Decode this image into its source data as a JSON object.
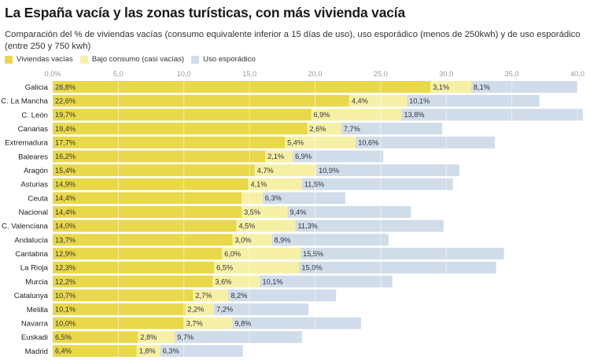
{
  "chart_data": {
    "type": "bar",
    "orientation": "horizontal",
    "stacked": true,
    "title": "La España vacía y las zonas turísticas, con más vivienda vacía",
    "subtitle": "Comparación del % de viviendas vacías (consumo equivalente inferior a 15 días de uso), uso esporádico (menos de 250kwh) y de uso esporádico (entre 250 y 750 kwh)",
    "xlabel": "",
    "ylabel": "",
    "xlim": [
      0,
      40
    ],
    "x_ticks": [
      0,
      5,
      10,
      15,
      20,
      25,
      30,
      35,
      40
    ],
    "x_tick_labels": [
      "0,0%",
      "5,0",
      "10,0",
      "15,0",
      "20,0",
      "25,0",
      "30,0",
      "35,0",
      "40,0"
    ],
    "grid": true,
    "legend_position": "top-left",
    "categories": [
      "Galicia",
      "C. La Mancha",
      "C. León",
      "Canarias",
      "Extremadura",
      "Baleares",
      "Aragón",
      "Asturias",
      "Ceuta",
      "Nacional",
      "C. Valenciana",
      "Andalucía",
      "Cantabria",
      "La Rioja",
      "Murcia",
      "Catalunya",
      "Melilla",
      "Navarra",
      "Euskadi",
      "Madrid"
    ],
    "series": [
      {
        "name": "Viviendas vacías",
        "color": "#e8d84a",
        "values": [
          28.8,
          22.6,
          19.7,
          19.4,
          17.7,
          16.2,
          15.4,
          14.9,
          14.4,
          14.4,
          14.0,
          13.7,
          12.9,
          12.3,
          12.2,
          10.7,
          10.1,
          10.0,
          6.5,
          6.4
        ],
        "labels": [
          "28,8%",
          "22,6%",
          "19,7%",
          "19,4%",
          "17,7%",
          "16,2%",
          "15,4%",
          "14,9%",
          "14,4%",
          "14,4%",
          "14,0%",
          "13,7%",
          "12,9%",
          "12,3%",
          "12,2%",
          "10,7%",
          "10,1%",
          "10,0%",
          "6,5%",
          "6,4%"
        ]
      },
      {
        "name": "Bajo consumo (casi vacías)",
        "color": "#f6f0a6",
        "values": [
          3.1,
          4.4,
          6.9,
          2.6,
          5.4,
          2.1,
          4.7,
          4.1,
          1.6,
          3.5,
          4.5,
          3.0,
          6.0,
          6.5,
          3.6,
          2.7,
          2.2,
          3.7,
          2.8,
          1.8
        ],
        "labels": [
          "3,1%",
          "4,4%",
          "6,9%",
          "2,6%",
          "5,4%",
          "2,1%",
          "4,7%",
          "4,1%",
          "",
          "3,5%",
          "4,5%",
          "3,0%",
          "6,0%",
          "6,5%",
          "3,6%",
          "2,7%",
          "2,2%",
          "3,7%",
          "2,8%",
          "1,8%"
        ]
      },
      {
        "name": "Uso esporádico",
        "color": "#d0dce9",
        "values": [
          8.1,
          10.1,
          13.8,
          7.7,
          10.6,
          6.9,
          10.9,
          11.5,
          6.3,
          9.4,
          11.3,
          8.9,
          15.5,
          15.0,
          10.1,
          8.2,
          7.2,
          9.8,
          9.7,
          6.3
        ],
        "labels": [
          "8,1%",
          "10,1%",
          "13,8%",
          "7,7%",
          "10,6%",
          "6,9%",
          "10,9%",
          "11,5%",
          "6,3%",
          "9,4%",
          "11,3%",
          "8,9%",
          "15,5%",
          "15,0%",
          "10,1%",
          "8,2%",
          "7,2%",
          "9,8%",
          "9,7%",
          "6,3%"
        ]
      }
    ]
  },
  "header": {
    "title": "La España vacía y las zonas turísticas, con más vivienda vacía",
    "subtitle": "Comparación del % de viviendas vacías (consumo equivalente inferior a 15 días de uso), uso esporádico (menos de 250kwh) y de uso esporádico (entre 250 y 750 kwh)"
  },
  "legend": [
    {
      "label": "Viviendas vacías",
      "color": "#e8d84a"
    },
    {
      "label": "Bajo consumo (casi vacías)",
      "color": "#f6f0a6"
    },
    {
      "label": "Uso esporádico",
      "color": "#d0dce9"
    }
  ]
}
